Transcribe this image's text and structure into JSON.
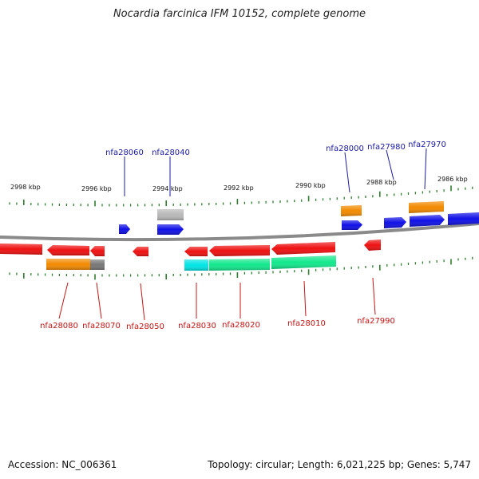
{
  "title": "Nocardia farcinica IFM 10152, complete genome",
  "footer": {
    "accession_label": "Accession:",
    "accession": "NC_006361",
    "topology_label": "Topology:",
    "topology": "circular",
    "length_label": "Length:",
    "length": "6,021,225 bp",
    "genes_label": "Genes:",
    "genes": "5,747"
  },
  "colors": {
    "backbone": "#808080",
    "ticks": "#2e7d2e",
    "forward_label": "#1a1aa6",
    "reverse_label": "#c81414"
  },
  "kbp_labels": [
    "2998 kbp",
    "2996 kbp",
    "2994 kbp",
    "2992 kbp",
    "2990 kbp",
    "2988 kbp",
    "2986 kbp"
  ],
  "gene_labels": {
    "forward": [
      "nfa28060",
      "nfa28040",
      "nfa28000",
      "nfa27980",
      "nfa27970"
    ],
    "reverse": [
      "nfa28080",
      "nfa28070",
      "nfa28050",
      "nfa28030",
      "nfa28020",
      "nfa28010",
      "nfa27990"
    ]
  },
  "feature_colors": {
    "gene_forward": "#1010e6",
    "gene_reverse": "#ee1111",
    "cds_orange": "#f28a00",
    "cds_gray": "#b8b8b8",
    "cds_darkgray": "#777777",
    "cds_cyan": "#00e5e5",
    "cds_green": "#12e88c"
  }
}
